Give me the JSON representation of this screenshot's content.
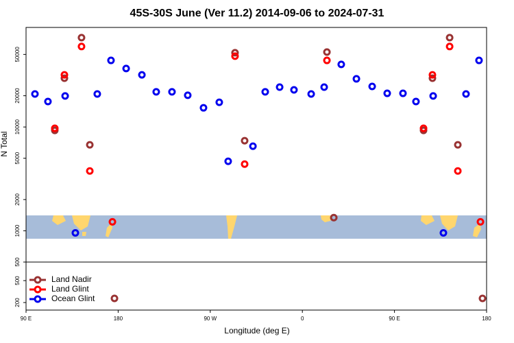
{
  "chart_data": [
    {
      "type": "scatter",
      "title": "45S-30S June (Ver 11.2)   2014-09-06 to 2024-07-31",
      "ylabel": "N Total",
      "xlim": [
        90,
        540
      ],
      "ylim": [
        500,
        91000
      ],
      "log_y": true,
      "yticks": [
        500,
        1000,
        2000,
        5000,
        10000,
        20000,
        50000
      ],
      "series": [
        {
          "name": "Land Nadir",
          "color": "#993333",
          "x": [
            118.1,
            127.5,
            144.2,
            152.3,
            294.2,
            303.6,
            384.0,
            390.7,
            478.4,
            487.1,
            503.9,
            511.9
          ],
          "values": [
            9270,
            29500,
            72600,
            6730,
            51900,
            7380,
            52700,
            1340,
            9270,
            29500,
            72600,
            6730
          ]
        },
        {
          "name": "Land Glint",
          "color": "#ff0000",
          "x": [
            118.1,
            127.5,
            144.2,
            152.3,
            174.4,
            294.2,
            303.6,
            384.0,
            478.4,
            487.1,
            503.9,
            511.9,
            534.0
          ],
          "values": [
            9710,
            31800,
            59600,
            3770,
            1220,
            48100,
            4390,
            43800,
            9710,
            31800,
            59600,
            3770,
            1220
          ]
        },
        {
          "name": "Ocean Glint",
          "color": "#0000ee",
          "x": [
            98.7,
            111.4,
            128.2,
            138.2,
            159.6,
            173.0,
            187.8,
            203.2,
            217.2,
            232.6,
            248.0,
            263.4,
            278.8,
            287.5,
            311.7,
            323.7,
            337.8,
            351.8,
            368.6,
            381.3,
            398.0,
            412.8,
            428.2,
            442.9,
            458.3,
            471.0,
            487.8,
            497.8,
            519.9,
            532.6
          ],
          "values": [
            20800,
            17600,
            19900,
            955,
            20800,
            43800,
            36600,
            31800,
            21800,
            21800,
            20200,
            15300,
            17300,
            4670,
            6530,
            21800,
            24200,
            22800,
            20800,
            24200,
            40100,
            29100,
            24600,
            21100,
            21100,
            17600,
            19900,
            955,
            20800,
            43800
          ]
        }
      ]
    },
    {
      "type": "scatter",
      "xlabel": "Longitude (deg E)",
      "legend": "upper left",
      "xlim": [
        90,
        540
      ],
      "ylim": [
        146,
        1086
      ],
      "log_y": true,
      "xticks": [
        {
          "value": 90,
          "label": "90 E"
        },
        180,
        {
          "value": 270,
          "label": "90 W"
        },
        {
          "value": 360,
          "label": "0"
        },
        {
          "value": 450,
          "label": "90 E"
        },
        {
          "value": 540,
          "label": "180"
        }
      ],
      "yticks": [
        200,
        500
      ],
      "series": [
        {
          "name": "Land Nadir",
          "color": "#993333",
          "x": [
            176.4,
            536.0
          ],
          "values": [
            238,
            238
          ]
        },
        {
          "name": "Land Glint",
          "color": "#ff0000",
          "x": [],
          "values": []
        },
        {
          "name": "Ocean Glint",
          "color": "#0000ee",
          "x": [],
          "values": []
        }
      ]
    }
  ]
}
